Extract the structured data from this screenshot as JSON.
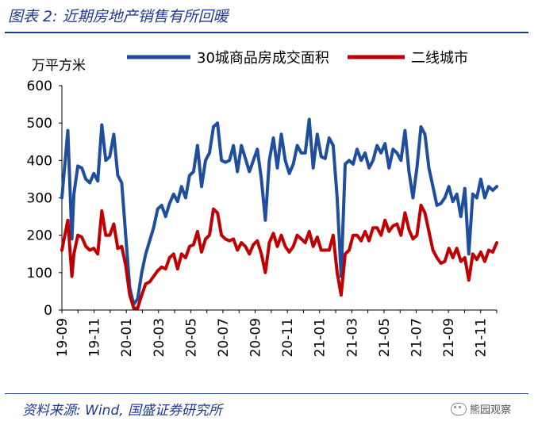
{
  "figure": {
    "title": "图表 2:  近期房地产销售有所回暖",
    "source": "资料来源:  Wind,  国盛证券研究所",
    "watermark": "熊园观察"
  },
  "colors": {
    "series_1": "#1f4e9e",
    "series_2": "#c00000",
    "title": "#1f3a93"
  },
  "chart_data": {
    "type": "line",
    "ylabel": "万平方米",
    "ylim": [
      0,
      600
    ],
    "yticks": [
      "0",
      "100",
      "200",
      "300",
      "400",
      "500",
      "600"
    ],
    "xticks": [
      "19-09",
      "19-11",
      "20-01",
      "20-03",
      "20-05",
      "20-07",
      "20-09",
      "20-11",
      "21-01",
      "21-03",
      "21-05",
      "21-07",
      "21-09",
      "21-11"
    ],
    "legend_position": "top",
    "grid": false,
    "series": [
      {
        "name": "30城商品房成交面积",
        "points": [
          [
            0,
            300
          ],
          [
            1.5,
            480
          ],
          [
            2.5,
            190
          ],
          [
            3,
            310
          ],
          [
            4,
            385
          ],
          [
            5,
            380
          ],
          [
            6,
            350
          ],
          [
            7,
            340
          ],
          [
            8,
            365
          ],
          [
            9,
            345
          ],
          [
            10,
            495
          ],
          [
            11,
            400
          ],
          [
            12,
            410
          ],
          [
            13,
            470
          ],
          [
            14,
            360
          ],
          [
            15,
            340
          ],
          [
            16,
            200
          ],
          [
            17,
            60
          ],
          [
            18,
            15
          ],
          [
            19,
            30
          ],
          [
            20,
            100
          ],
          [
            21,
            150
          ],
          [
            22,
            185
          ],
          [
            23,
            220
          ],
          [
            24,
            270
          ],
          [
            25,
            280
          ],
          [
            26,
            250
          ],
          [
            27,
            285
          ],
          [
            28,
            310
          ],
          [
            29,
            290
          ],
          [
            30,
            330
          ],
          [
            31,
            300
          ],
          [
            32,
            360
          ],
          [
            33,
            370
          ],
          [
            34,
            440
          ],
          [
            35,
            330
          ],
          [
            36,
            400
          ],
          [
            37,
            420
          ],
          [
            38,
            490
          ],
          [
            39,
            500
          ],
          [
            40,
            400
          ],
          [
            41,
            395
          ],
          [
            42,
            400
          ],
          [
            43,
            440
          ],
          [
            44,
            370
          ],
          [
            45,
            440
          ],
          [
            46,
            405
          ],
          [
            47,
            370
          ],
          [
            48,
            400
          ],
          [
            49,
            430
          ],
          [
            50,
            350
          ],
          [
            51,
            240
          ],
          [
            52,
            400
          ],
          [
            53,
            460
          ],
          [
            54,
            380
          ],
          [
            55,
            470
          ],
          [
            56,
            400
          ],
          [
            57,
            365
          ],
          [
            58,
            390
          ],
          [
            59,
            440
          ],
          [
            60,
            420
          ],
          [
            61,
            420
          ],
          [
            62,
            510
          ],
          [
            63,
            380
          ],
          [
            64,
            470
          ],
          [
            65,
            410
          ],
          [
            66,
            405
          ],
          [
            67,
            460
          ],
          [
            68,
            440
          ],
          [
            69,
            300
          ],
          [
            70,
            90
          ],
          [
            71,
            390
          ],
          [
            72,
            400
          ],
          [
            73,
            390
          ],
          [
            74,
            430
          ],
          [
            75,
            400
          ],
          [
            76,
            420
          ],
          [
            77,
            380
          ],
          [
            78,
            400
          ],
          [
            79,
            440
          ],
          [
            80,
            420
          ],
          [
            81,
            445
          ],
          [
            82,
            380
          ],
          [
            83,
            430
          ],
          [
            84,
            420
          ],
          [
            85,
            400
          ],
          [
            86,
            480
          ],
          [
            87,
            370
          ],
          [
            88,
            300
          ],
          [
            89,
            380
          ],
          [
            90,
            490
          ],
          [
            91,
            470
          ],
          [
            92,
            380
          ],
          [
            93,
            330
          ],
          [
            94,
            280
          ],
          [
            95,
            285
          ],
          [
            96,
            300
          ],
          [
            97,
            330
          ],
          [
            98,
            290
          ],
          [
            99,
            310
          ],
          [
            100,
            250
          ],
          [
            101,
            325
          ],
          [
            102,
            150
          ],
          [
            103,
            310
          ],
          [
            104,
            300
          ],
          [
            105,
            350
          ],
          [
            106,
            300
          ],
          [
            107,
            330
          ],
          [
            108,
            320
          ],
          [
            109,
            330
          ]
        ]
      },
      {
        "name": "二线城市",
        "points": [
          [
            0,
            160
          ],
          [
            1.5,
            240
          ],
          [
            2.5,
            90
          ],
          [
            3,
            150
          ],
          [
            4,
            200
          ],
          [
            5,
            195
          ],
          [
            6,
            170
          ],
          [
            7,
            160
          ],
          [
            8,
            165
          ],
          [
            9,
            150
          ],
          [
            10,
            265
          ],
          [
            11,
            200
          ],
          [
            12,
            200
          ],
          [
            13,
            230
          ],
          [
            14,
            165
          ],
          [
            15,
            170
          ],
          [
            16,
            120
          ],
          [
            17,
            40
          ],
          [
            18,
            5
          ],
          [
            19,
            5
          ],
          [
            20,
            40
          ],
          [
            21,
            70
          ],
          [
            22,
            75
          ],
          [
            23,
            90
          ],
          [
            24,
            105
          ],
          [
            25,
            115
          ],
          [
            26,
            110
          ],
          [
            27,
            140
          ],
          [
            28,
            150
          ],
          [
            29,
            110
          ],
          [
            30,
            150
          ],
          [
            31,
            140
          ],
          [
            32,
            170
          ],
          [
            33,
            175
          ],
          [
            34,
            210
          ],
          [
            35,
            155
          ],
          [
            36,
            190
          ],
          [
            37,
            200
          ],
          [
            38,
            270
          ],
          [
            39,
            260
          ],
          [
            40,
            200
          ],
          [
            41,
            190
          ],
          [
            42,
            185
          ],
          [
            43,
            190
          ],
          [
            44,
            160
          ],
          [
            45,
            180
          ],
          [
            46,
            170
          ],
          [
            47,
            150
          ],
          [
            48,
            175
          ],
          [
            49,
            185
          ],
          [
            50,
            150
          ],
          [
            51,
            100
          ],
          [
            52,
            180
          ],
          [
            53,
            205
          ],
          [
            54,
            170
          ],
          [
            55,
            200
          ],
          [
            56,
            170
          ],
          [
            57,
            155
          ],
          [
            58,
            170
          ],
          [
            59,
            200
          ],
          [
            60,
            190
          ],
          [
            61,
            180
          ],
          [
            62,
            210
          ],
          [
            63,
            170
          ],
          [
            64,
            195
          ],
          [
            65,
            160
          ],
          [
            66,
            160
          ],
          [
            67,
            160
          ],
          [
            68,
            200
          ],
          [
            69,
            100
          ],
          [
            70,
            40
          ],
          [
            71,
            150
          ],
          [
            72,
            160
          ],
          [
            73,
            200
          ],
          [
            74,
            200
          ],
          [
            75,
            185
          ],
          [
            76,
            210
          ],
          [
            77,
            185
          ],
          [
            78,
            220
          ],
          [
            79,
            220
          ],
          [
            80,
            200
          ],
          [
            81,
            240
          ],
          [
            82,
            210
          ],
          [
            83,
            225
          ],
          [
            84,
            230
          ],
          [
            85,
            200
          ],
          [
            86,
            260
          ],
          [
            87,
            215
          ],
          [
            88,
            190
          ],
          [
            89,
            200
          ],
          [
            90,
            280
          ],
          [
            91,
            260
          ],
          [
            92,
            210
          ],
          [
            93,
            160
          ],
          [
            94,
            140
          ],
          [
            95,
            125
          ],
          [
            96,
            130
          ],
          [
            97,
            165
          ],
          [
            98,
            140
          ],
          [
            99,
            165
          ],
          [
            100,
            130
          ],
          [
            101,
            140
          ],
          [
            102,
            80
          ],
          [
            103,
            150
          ],
          [
            104,
            135
          ],
          [
            105,
            155
          ],
          [
            106,
            130
          ],
          [
            107,
            160
          ],
          [
            108,
            155
          ],
          [
            109,
            180
          ]
        ]
      }
    ]
  }
}
